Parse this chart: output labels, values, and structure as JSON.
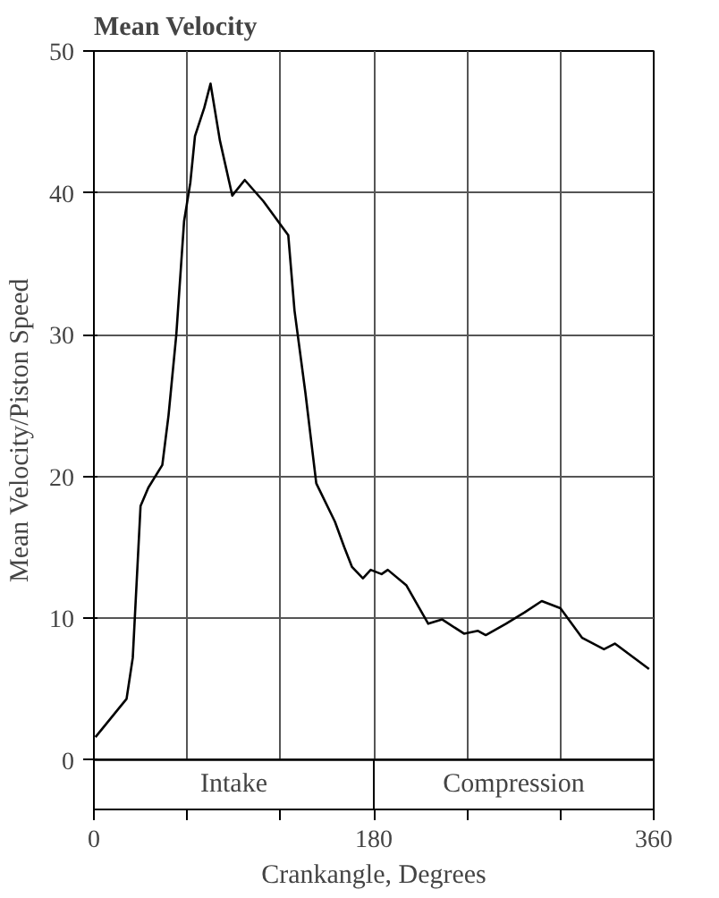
{
  "chart_data": {
    "type": "line",
    "title": "Mean Velocity",
    "xlabel": "Crankangle, Degrees",
    "ylabel": "Mean Velocity/Piston Speed",
    "x": [
      1,
      21,
      25,
      30,
      35,
      44,
      48,
      53,
      58,
      62,
      65,
      71,
      75,
      81,
      89,
      97,
      109,
      125,
      129,
      136,
      143,
      155,
      161,
      166,
      173,
      178,
      185,
      189,
      201,
      215,
      224,
      238,
      247,
      252,
      265,
      277,
      288,
      300,
      314,
      328,
      335,
      357
    ],
    "values": [
      1.6,
      4.3,
      7.2,
      17.9,
      19.2,
      20.8,
      24.3,
      30,
      38,
      40.7,
      44,
      46,
      47.7,
      43.7,
      39.8,
      40.9,
      39.4,
      37,
      31.7,
      25.9,
      19.5,
      16.8,
      15,
      13.6,
      12.8,
      13.4,
      13.1,
      13.4,
      12.3,
      9.6,
      9.9,
      8.9,
      9.1,
      8.8,
      9.6,
      10.4,
      11.2,
      10.7,
      8.6,
      7.8,
      8.2,
      6.4
    ],
    "color": "#000000",
    "xlim": [
      0,
      360
    ],
    "ylim": [
      -3.5,
      50
    ],
    "xticks": [
      0,
      {
        "value": 60,
        "label": null
      },
      {
        "value": 120,
        "label": null
      },
      180,
      {
        "value": 240,
        "label": null
      },
      {
        "value": 300,
        "label": null
      },
      360
    ],
    "yticks": [
      0,
      10,
      20,
      30,
      40,
      50
    ],
    "grid": true,
    "marker": "none",
    "line_style": "solid",
    "bands": [
      {
        "axis": "x",
        "from": 0,
        "to": 180,
        "label": "Intake",
        "color": "#ffffff"
      },
      {
        "axis": "x",
        "from": 180,
        "to": 360,
        "label": "Compression",
        "color": "#ffffff"
      }
    ]
  }
}
